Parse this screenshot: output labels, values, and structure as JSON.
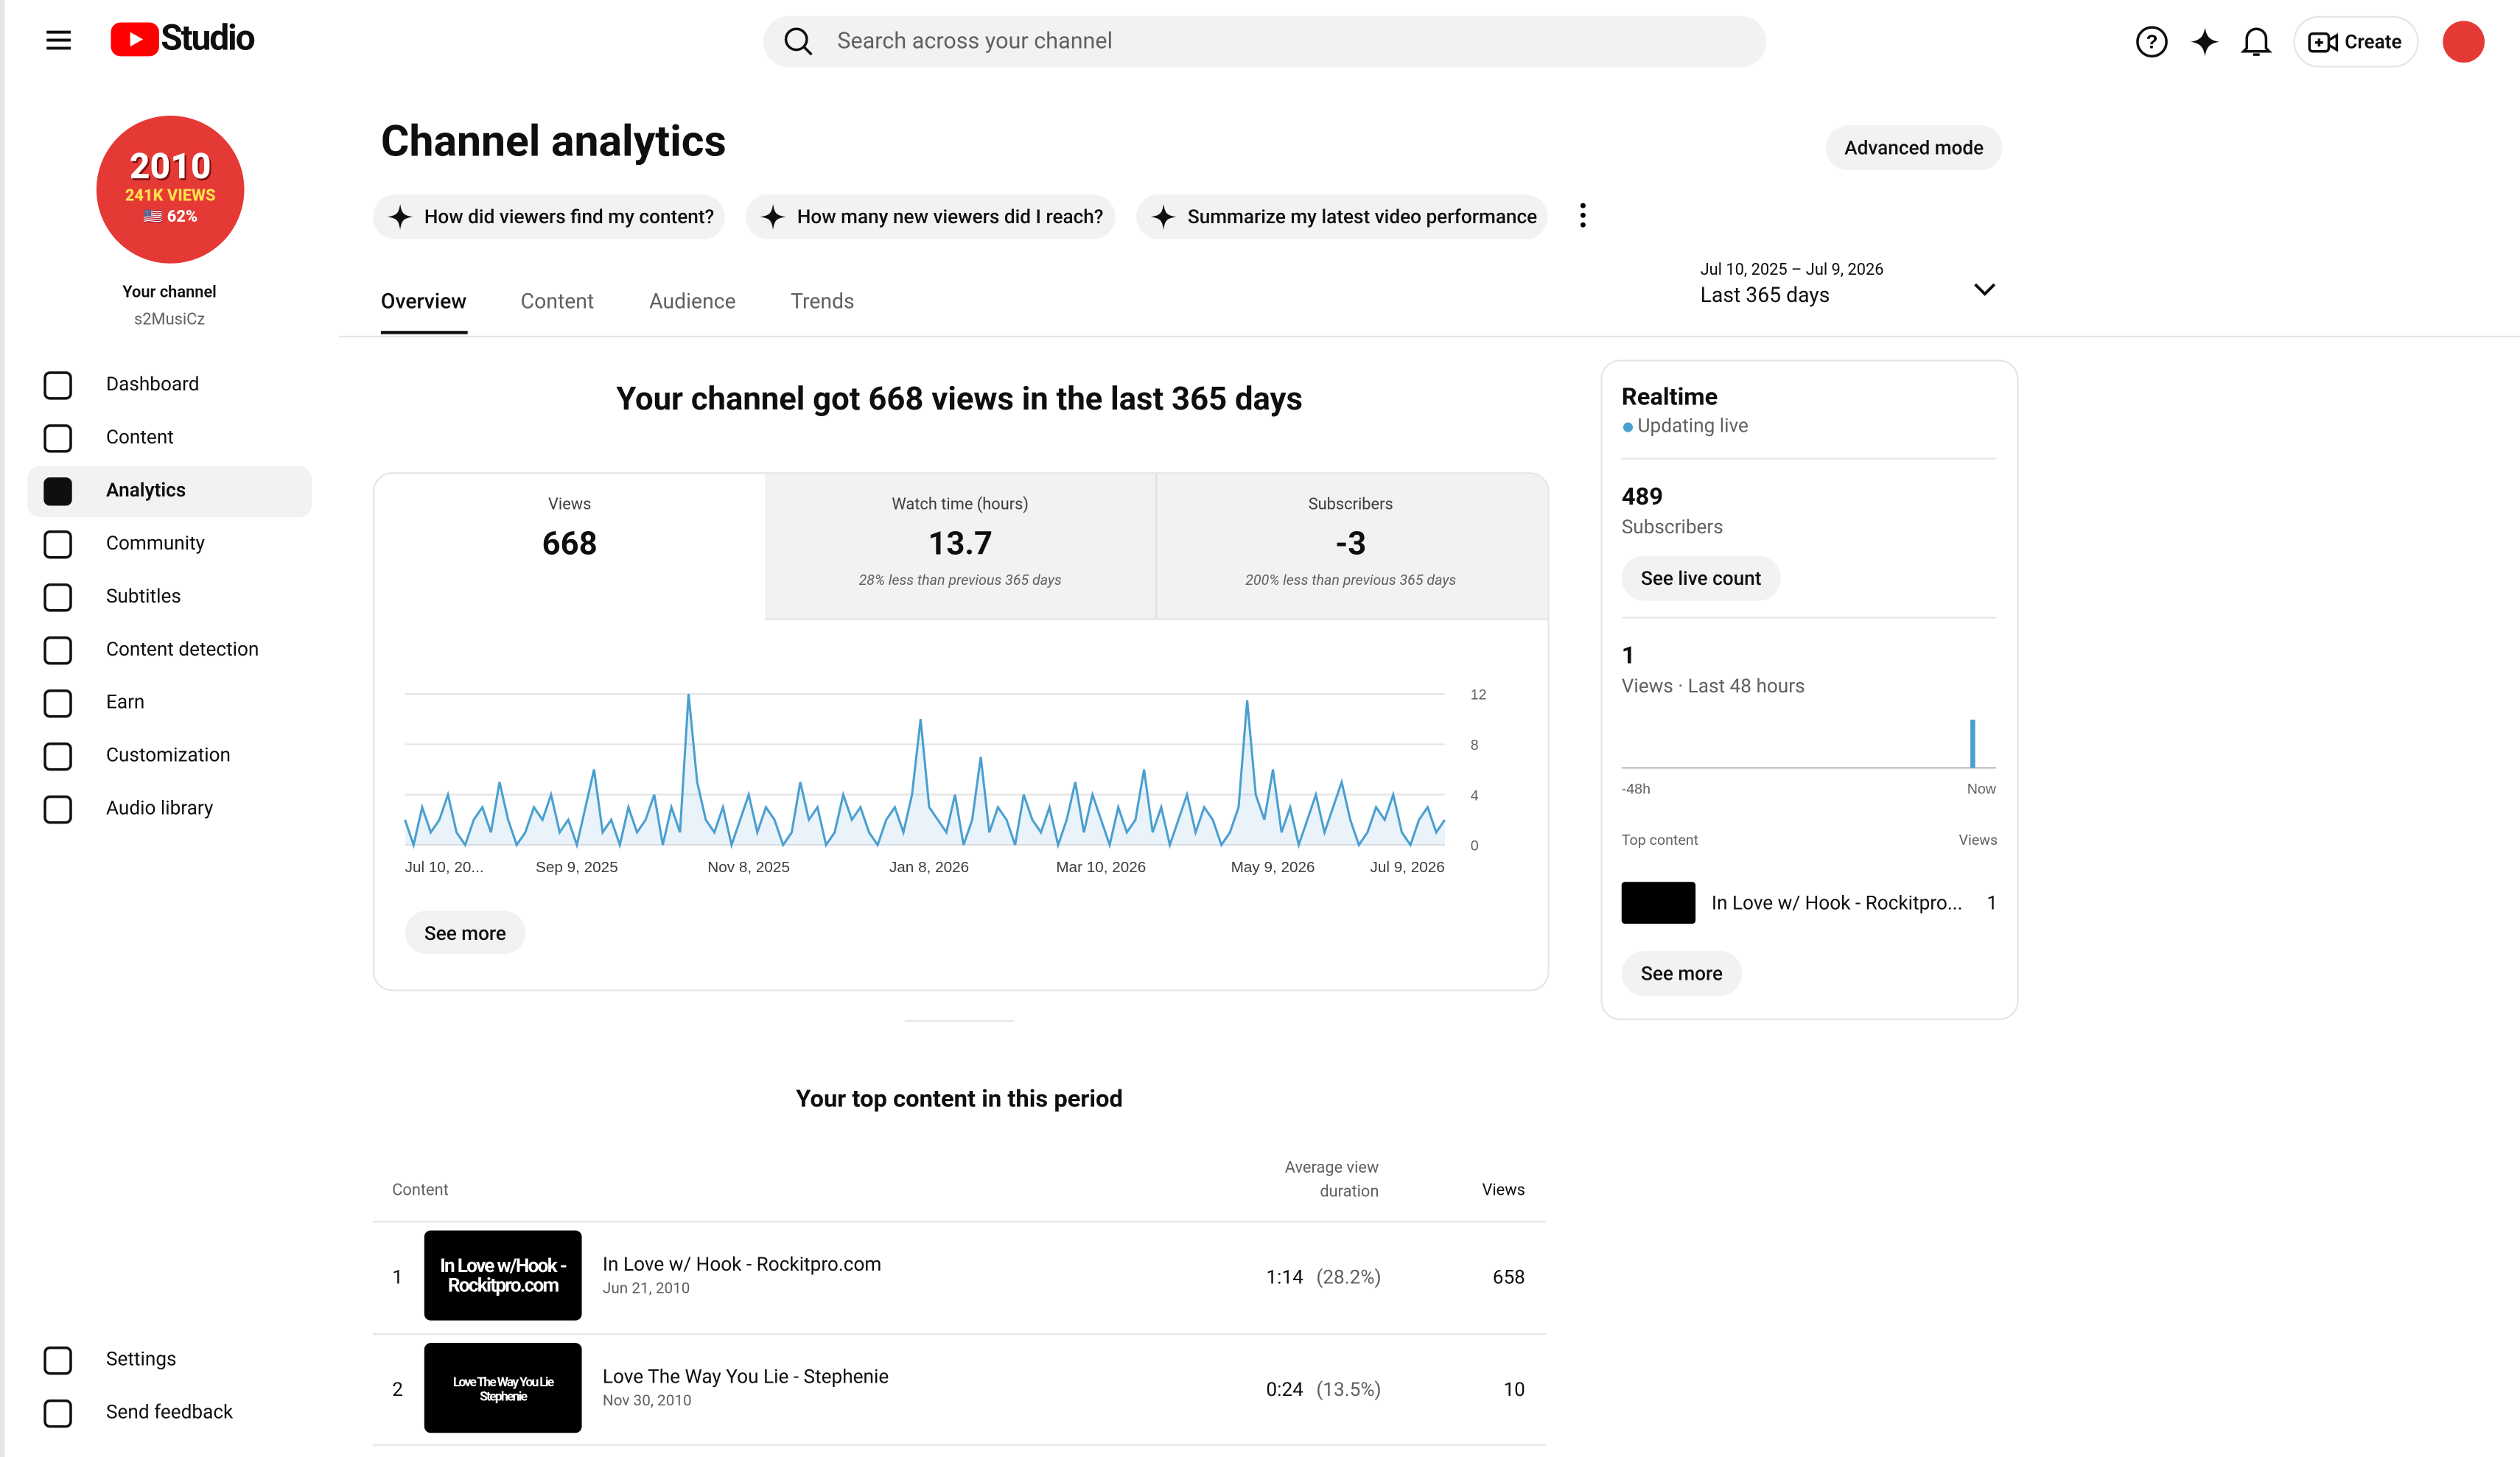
{
  "header": {
    "logo": "Studio",
    "search_placeholder": "Search across your channel",
    "create": "Create"
  },
  "channel": {
    "badge_line1": "2010",
    "badge_line2": "241K VIEWS",
    "badge_line3": "🇺🇸 62%",
    "label": "Your channel",
    "name": "s2MusiCz"
  },
  "nav": [
    "Dashboard",
    "Content",
    "Analytics",
    "Community",
    "Subtitles",
    "Content detection",
    "Earn",
    "Customization",
    "Audio library"
  ],
  "nav_bottom": [
    "Settings",
    "Send feedback"
  ],
  "page": {
    "title": "Channel analytics",
    "advanced": "Advanced mode",
    "prompts": [
      "How did viewers find my content?",
      "How many new viewers did I reach?",
      "Summarize my latest video performance"
    ],
    "tabs": [
      "Overview",
      "Content",
      "Audience",
      "Trends"
    ],
    "date_range": "Jul 10, 2025 – Jul 9, 2026",
    "date_label": "Last 365 days"
  },
  "summary": {
    "headline": "Your channel got 668 views in the last 365 days",
    "metrics": [
      {
        "label": "Views",
        "value": 668
      },
      {
        "label": "Watch time (hours)",
        "value": 13.7,
        "note": "28% less than previous 365 days"
      },
      {
        "label": "Subscribers",
        "value": -3,
        "note": "200% less than previous 365 days"
      }
    ],
    "see_more": "See more"
  },
  "chart_data": {
    "type": "line",
    "color": "#4a9fd0",
    "values": [
      2,
      0,
      3,
      1,
      2,
      4,
      1,
      0,
      2,
      3,
      1,
      5,
      2,
      0,
      1,
      3,
      2,
      4,
      1,
      2,
      0,
      3,
      6,
      1,
      2,
      0,
      3,
      1,
      2,
      4,
      0,
      3,
      1,
      12,
      5,
      2,
      1,
      3,
      0,
      2,
      4,
      1,
      3,
      2,
      0,
      1,
      5,
      2,
      3,
      0,
      1,
      4,
      2,
      3,
      1,
      0,
      2,
      3,
      1,
      4,
      10,
      3,
      2,
      1,
      4,
      0,
      2,
      7,
      1,
      3,
      2,
      0,
      4,
      2,
      1,
      3,
      0,
      2,
      5,
      1,
      4,
      2,
      0,
      3,
      1,
      2,
      6,
      1,
      3,
      0,
      2,
      4,
      1,
      3,
      2,
      0,
      1,
      3,
      11.5,
      4,
      2,
      6,
      1,
      3,
      0,
      2,
      4,
      1,
      3,
      5,
      2,
      0,
      1,
      3,
      2,
      4,
      1,
      0,
      2,
      3,
      1,
      2
    ],
    "xlim": [
      0,
      121
    ],
    "xticks": [
      {
        "value": 0,
        "label": "Jul 10, 20..."
      },
      {
        "value": 20,
        "label": "Sep 9, 2025"
      },
      {
        "value": 40,
        "label": "Nov 8, 2025"
      },
      {
        "value": 61,
        "label": "Jan 8, 2026"
      },
      {
        "value": 81,
        "label": "Mar 10, 2026"
      },
      {
        "value": 101,
        "label": "May 9, 2026"
      },
      {
        "value": 121,
        "label": "Jul 9, 2026"
      }
    ],
    "ylim": [
      0,
      12
    ],
    "yticks": [
      0,
      4,
      8,
      12
    ],
    "grid": true
  },
  "realtime": {
    "title": "Realtime",
    "status": "Updating live",
    "subscribers": 489,
    "subscribers_label": "Subscribers",
    "live_count": "See live count",
    "views": 1,
    "views_label": "Views · Last 48 hours",
    "bars": [
      1
    ],
    "axis_start": "-48h",
    "axis_end": "Now",
    "top_content": "Top content",
    "views_col": "Views",
    "item_title": "In Love w/ Hook - Rockitpro...",
    "item_views": 1,
    "see_more": "See more"
  },
  "top_content": {
    "title": "Your top content in this period",
    "columns": [
      "Content",
      "Average view duration",
      "Views"
    ],
    "rows": [
      {
        "rank": 1,
        "title": "In Love w/ Hook - Rockitpro.com",
        "date": "Jun 21, 2010",
        "duration": "1:14",
        "percent": "(28.2%)",
        "views": 658,
        "thumb": "In Love w/Hook - Rockitpro.com"
      },
      {
        "rank": 2,
        "title": "Love The Way You Lie - Stephenie",
        "date": "Nov 30, 2010",
        "duration": "0:24",
        "percent": "(13.5%)",
        "views": 10,
        "thumb": "Love The Way You Lie Stephenie"
      }
    ]
  }
}
